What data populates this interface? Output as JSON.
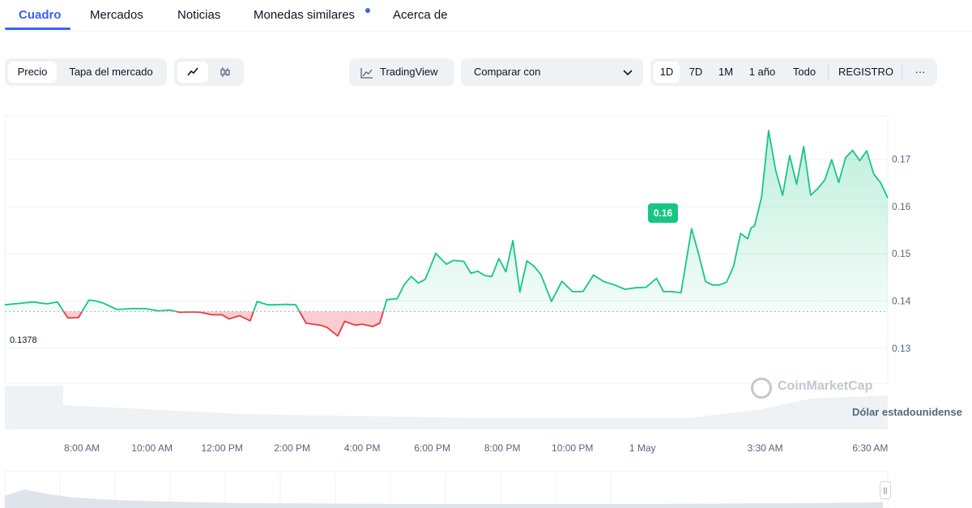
{
  "tabs": [
    {
      "label": "Cuadro",
      "active": true
    },
    {
      "label": "Mercados"
    },
    {
      "label": "Noticias"
    },
    {
      "label": "Monedas similares",
      "dot": true
    },
    {
      "label": "Acerca de"
    }
  ],
  "toolbar": {
    "price_label": "Precio",
    "marketcap_label": "Tapa del mercado",
    "line_icon": "line-chart-icon",
    "candle_icon": "candlestick-icon",
    "tradingview_label": "TradingView",
    "compare_label": "Comparar con",
    "ranges": [
      "1D",
      "7D",
      "1M",
      "1 año",
      "Todo"
    ],
    "active_range": "1D",
    "log_label": "REGISTRO",
    "more_label": "···"
  },
  "colors": {
    "up": "#16c784",
    "down": "#ea3943",
    "accent": "#3861fb"
  },
  "chart_data": {
    "type": "line",
    "baseline": 0.1378,
    "baseline_label": "0.1378",
    "current_tag": "0.16",
    "y_ticks": [
      0.13,
      0.14,
      0.15,
      0.16,
      0.17
    ],
    "y_tick_labels": [
      "0.13",
      "0.14",
      "0.15",
      "0.16",
      "0.17"
    ],
    "ylim": [
      0.1226,
      0.1792
    ],
    "x_tick_labels": [
      "8:00 AM",
      "10:00 AM",
      "12:00 PM",
      "2:00 PM",
      "4:00 PM",
      "6:00 PM",
      "8:00 PM",
      "10:00 PM",
      "1 May",
      "3:30 AM",
      "6:30 AM"
    ],
    "x_tick_hours": [
      8,
      10,
      12,
      14,
      16,
      18,
      20,
      22,
      24,
      27.5,
      30.5
    ],
    "xlim": [
      5.8,
      31.0
    ],
    "series_hours": [
      5.8,
      6.2,
      6.6,
      7.0,
      7.3,
      7.6,
      7.9,
      8.2,
      8.35,
      8.6,
      9.0,
      9.4,
      9.8,
      10.2,
      10.5,
      10.8,
      11.1,
      11.4,
      11.7,
      12.0,
      12.2,
      12.5,
      12.8,
      13.0,
      13.3,
      13.5,
      13.8,
      14.1,
      14.4,
      14.6,
      14.8,
      15.0,
      15.3,
      15.5,
      15.8,
      16.0,
      16.3,
      16.5,
      16.7,
      17.0,
      17.2,
      17.4,
      17.6,
      17.8,
      18.1,
      18.4,
      18.6,
      18.9,
      19.1,
      19.3,
      19.5,
      19.7,
      19.9,
      20.1,
      20.3,
      20.5,
      20.7,
      20.9,
      21.1,
      21.4,
      21.7,
      22.0,
      22.3,
      22.6,
      22.9,
      23.2,
      23.5,
      23.8,
      24.1,
      24.4,
      24.6,
      24.8,
      25.1,
      25.4,
      25.6,
      25.8,
      26.0,
      26.2,
      26.4,
      26.6,
      26.8,
      27.0,
      27.1,
      27.2,
      27.4,
      27.6,
      27.8,
      28.0,
      28.2,
      28.4,
      28.6,
      28.8,
      29.0,
      29.2,
      29.4,
      29.6,
      29.8,
      30.0,
      30.2,
      30.4,
      30.6,
      30.8,
      31.0
    ],
    "series_values": [
      0.1392,
      0.1395,
      0.1398,
      0.1394,
      0.1398,
      0.1364,
      0.1365,
      0.1402,
      0.1401,
      0.1396,
      0.1382,
      0.1384,
      0.1384,
      0.1379,
      0.1381,
      0.1376,
      0.1377,
      0.1376,
      0.1371,
      0.1371,
      0.1362,
      0.1369,
      0.1358,
      0.1399,
      0.1392,
      0.1392,
      0.1393,
      0.1392,
      0.1353,
      0.1351,
      0.1349,
      0.1344,
      0.1326,
      0.1357,
      0.1349,
      0.1351,
      0.1346,
      0.1353,
      0.1403,
      0.1405,
      0.1435,
      0.1452,
      0.1438,
      0.1446,
      0.1501,
      0.1478,
      0.1486,
      0.1484,
      0.1459,
      0.1463,
      0.1454,
      0.1452,
      0.149,
      0.1462,
      0.1528,
      0.1419,
      0.1485,
      0.1474,
      0.1456,
      0.1399,
      0.1442,
      0.142,
      0.142,
      0.1455,
      0.1441,
      0.1434,
      0.1425,
      0.1428,
      0.1429,
      0.1448,
      0.142,
      0.142,
      0.1418,
      0.1553,
      0.15,
      0.1441,
      0.1434,
      0.1434,
      0.144,
      0.1474,
      0.1543,
      0.1532,
      0.1555,
      0.1559,
      0.1621,
      0.1761,
      0.1677,
      0.1624,
      0.1708,
      0.1647,
      0.1727,
      0.1624,
      0.1638,
      0.1656,
      0.1699,
      0.1651,
      0.1704,
      0.1719,
      0.1697,
      0.1718,
      0.1669,
      0.165,
      0.1618
    ]
  },
  "watermark": "CoinMarketCap",
  "currency_label": "Dólar estadounidense"
}
